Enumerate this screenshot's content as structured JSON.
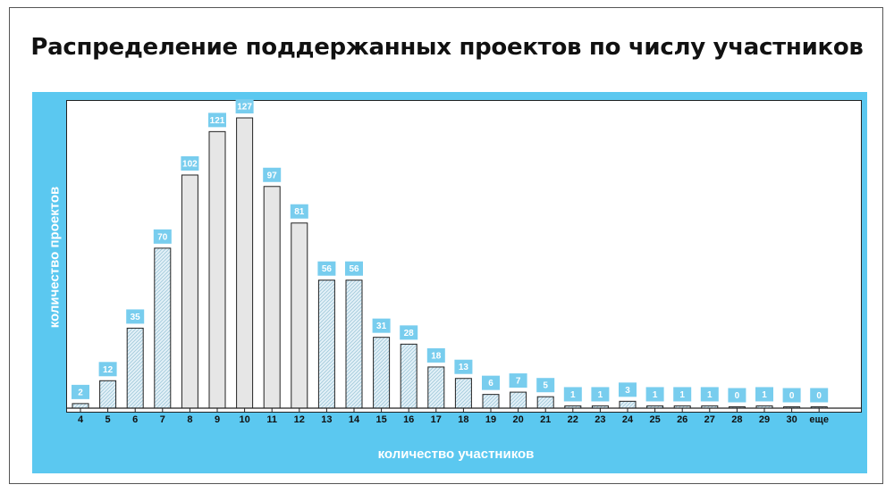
{
  "title": "Распределение поддержанных проектов по числу участников",
  "chart_data": {
    "type": "bar",
    "title": "Распределение поддержанных проектов по числу участников",
    "xlabel": "количество участников",
    "ylabel": "количество проектов",
    "categories": [
      "4",
      "5",
      "6",
      "7",
      "8",
      "9",
      "10",
      "11",
      "12",
      "13",
      "14",
      "15",
      "16",
      "17",
      "18",
      "19",
      "20",
      "21",
      "22",
      "23",
      "24",
      "25",
      "26",
      "27",
      "28",
      "29",
      "30",
      "еще"
    ],
    "values": [
      2,
      12,
      35,
      70,
      102,
      121,
      127,
      97,
      81,
      56,
      56,
      31,
      28,
      18,
      13,
      6,
      7,
      5,
      1,
      1,
      3,
      1,
      1,
      1,
      0,
      1,
      0,
      0
    ],
    "highlighted": [
      "8",
      "9",
      "10",
      "11",
      "12"
    ],
    "ylim": [
      0,
      135
    ],
    "grid": false,
    "legend": "none",
    "colors": {
      "panel": "#5bc8f0",
      "label_box": "#78cdee",
      "label_text": "#ffffff",
      "highlight_bar": "#e6e6e6",
      "normal_bar": "#e4f1f8",
      "hatch": "#9fc8da",
      "bar_stroke": "#222222"
    }
  }
}
